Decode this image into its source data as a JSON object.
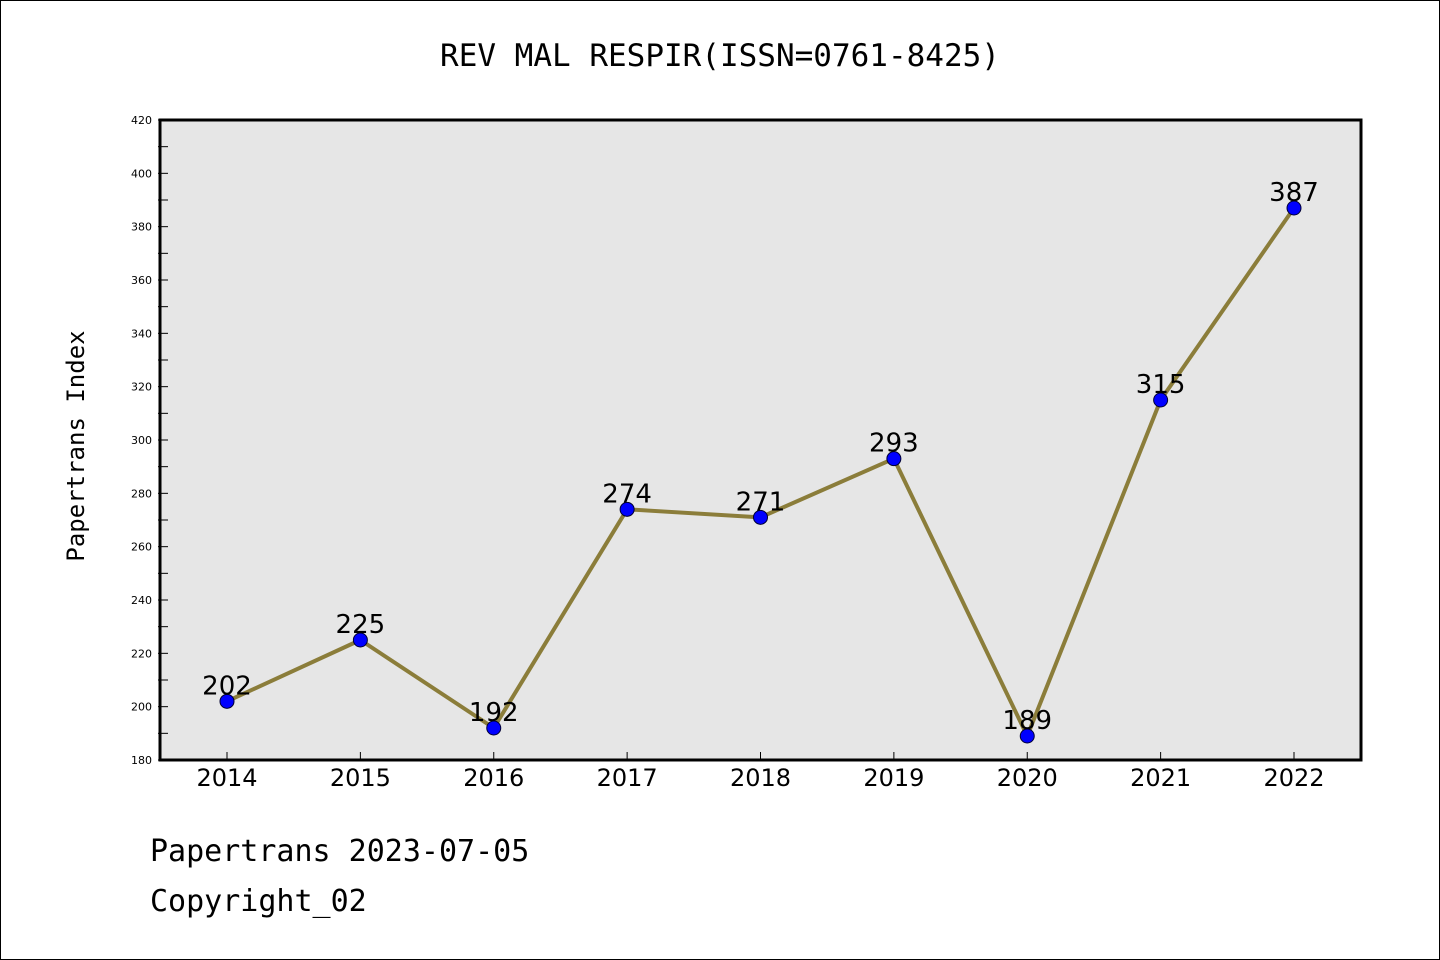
{
  "chart_data": {
    "type": "line",
    "title": "REV MAL RESPIR(ISSN=0761-8425)",
    "xlabel": "",
    "ylabel": "Papertrans Index",
    "categories": [
      "2014",
      "2015",
      "2016",
      "2017",
      "2018",
      "2019",
      "2020",
      "2021",
      "2022"
    ],
    "series": [
      {
        "values": [
          202,
          225,
          192,
          274,
          271,
          293,
          189,
          315,
          387
        ],
        "line_color": "#8b7d3a",
        "marker_color": "#0000ff"
      }
    ],
    "data_labels": [
      "202",
      "225",
      "192",
      "274",
      "271",
      "293",
      "189",
      "315",
      "387"
    ],
    "ylim": [
      180,
      420
    ],
    "yticks": [
      "180",
      "200",
      "220",
      "240",
      "260",
      "280",
      "300",
      "320",
      "340",
      "360",
      "380",
      "400",
      "420"
    ],
    "grid": false,
    "plot_background": "#e6e6e6"
  },
  "footer": {
    "line1": "Papertrans 2023-07-05",
    "line2": "Copyright_02"
  }
}
